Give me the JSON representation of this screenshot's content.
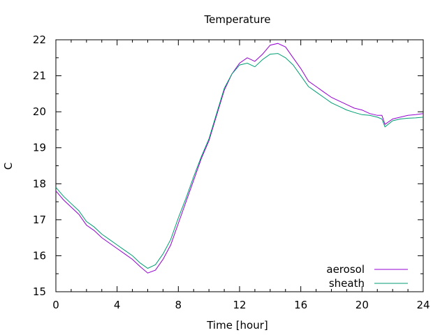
{
  "chart_data": {
    "type": "line",
    "title": "Temperature",
    "xlabel": "Time [hour]",
    "ylabel": "C",
    "xlim": [
      0,
      24
    ],
    "ylim": [
      15,
      22
    ],
    "xticks": [
      0,
      4,
      8,
      12,
      16,
      20,
      24
    ],
    "yticks": [
      15,
      16,
      17,
      18,
      19,
      20,
      21,
      22
    ],
    "grid": false,
    "legend_position": "bottom-right",
    "series": [
      {
        "name": "aerosol",
        "color": "#9400d3",
        "x": [
          0,
          0.5,
          1,
          1.5,
          2,
          2.5,
          3,
          3.5,
          4,
          4.5,
          5,
          5.5,
          6,
          6.5,
          7,
          7.5,
          8,
          8.5,
          9,
          9.5,
          10,
          10.5,
          11,
          11.5,
          12,
          12.5,
          13,
          13.5,
          14,
          14.5,
          15,
          15.5,
          16,
          16.5,
          17,
          17.5,
          18,
          18.5,
          19,
          19.5,
          20,
          20.5,
          21,
          21.3,
          21.5,
          22,
          22.5,
          23,
          23.5,
          24
        ],
        "y": [
          17.8,
          17.55,
          17.35,
          17.15,
          16.85,
          16.7,
          16.5,
          16.35,
          16.2,
          16.05,
          15.9,
          15.7,
          15.52,
          15.6,
          15.9,
          16.3,
          16.9,
          17.5,
          18.1,
          18.7,
          19.2,
          19.9,
          20.6,
          21.05,
          21.35,
          21.5,
          21.4,
          21.6,
          21.85,
          21.9,
          21.8,
          21.5,
          21.2,
          20.85,
          20.7,
          20.55,
          20.4,
          20.3,
          20.2,
          20.1,
          20.05,
          19.95,
          19.9,
          19.9,
          19.65,
          19.8,
          19.85,
          19.9,
          19.92,
          19.95
        ]
      },
      {
        "name": "sheath",
        "color": "#009e73",
        "x": [
          0,
          0.5,
          1,
          1.5,
          2,
          2.5,
          3,
          3.5,
          4,
          4.5,
          5,
          5.5,
          6,
          6.5,
          7,
          7.5,
          8,
          8.5,
          9,
          9.5,
          10,
          10.5,
          11,
          11.5,
          12,
          12.5,
          13,
          13.5,
          14,
          14.5,
          15,
          15.5,
          16,
          16.5,
          17,
          17.5,
          18,
          18.5,
          19,
          19.5,
          20,
          20.5,
          21,
          21.3,
          21.5,
          22,
          22.5,
          23,
          23.5,
          24
        ],
        "y": [
          17.9,
          17.65,
          17.45,
          17.25,
          16.95,
          16.8,
          16.6,
          16.45,
          16.3,
          16.15,
          16.0,
          15.8,
          15.65,
          15.75,
          16.05,
          16.45,
          17.05,
          17.6,
          18.2,
          18.75,
          19.25,
          19.95,
          20.65,
          21.05,
          21.3,
          21.35,
          21.25,
          21.45,
          21.6,
          21.62,
          21.5,
          21.3,
          21.0,
          20.7,
          20.55,
          20.4,
          20.25,
          20.15,
          20.05,
          19.98,
          19.92,
          19.9,
          19.85,
          19.8,
          19.58,
          19.75,
          19.8,
          19.82,
          19.83,
          19.85
        ]
      }
    ]
  }
}
